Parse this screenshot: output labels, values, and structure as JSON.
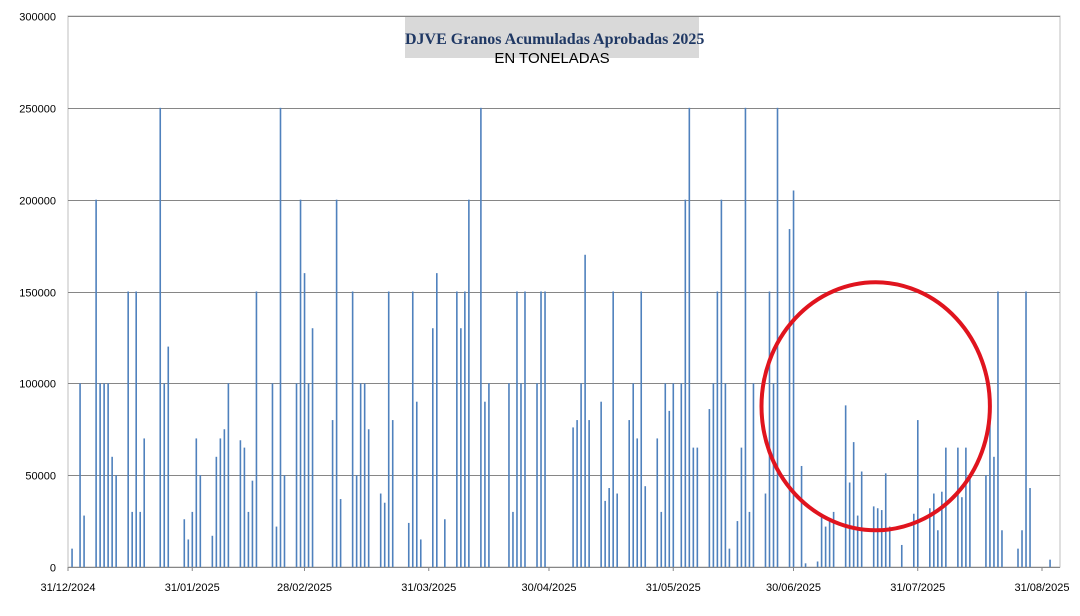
{
  "chart_data": {
    "type": "bar",
    "title": "DJVE Granos Acumuladas Aprobadas 2025",
    "subtitle": "EN TONELADAS",
    "ylim": [
      0,
      300000
    ],
    "y_ticks": [
      "0",
      "50000",
      "100000",
      "150000",
      "200000",
      "250000",
      "300000"
    ],
    "x_range": [
      "2024-12-31",
      "2025-08-31"
    ],
    "x_ticks": [
      "31/12/2024",
      "31/01/2025",
      "28/02/2025",
      "31/03/2025",
      "30/04/2025",
      "31/05/2025",
      "30/06/2025",
      "31/07/2025",
      "31/08/2025"
    ],
    "x_tick_dates": [
      "2024-12-31",
      "2025-01-31",
      "2025-02-28",
      "2025-03-31",
      "2025-04-30",
      "2025-05-31",
      "2025-06-30",
      "2025-07-31",
      "2025-08-31"
    ],
    "grid": true,
    "bar_color": "#4f81bd",
    "annotation": {
      "shape": "ellipse",
      "color": "#e0141e",
      "x_from": "2025-06-22",
      "x_to": "2025-08-18",
      "y_from": 20000,
      "y_to": 155000
    },
    "points": [
      [
        "2025-01-01",
        10000
      ],
      [
        "2025-01-03",
        100000
      ],
      [
        "2025-01-04",
        28000
      ],
      [
        "2025-01-07",
        200000
      ],
      [
        "2025-01-08",
        100000
      ],
      [
        "2025-01-09",
        100000
      ],
      [
        "2025-01-10",
        100000
      ],
      [
        "2025-01-11",
        60000
      ],
      [
        "2025-01-12",
        50000
      ],
      [
        "2025-01-15",
        150000
      ],
      [
        "2025-01-16",
        30000
      ],
      [
        "2025-01-17",
        150000
      ],
      [
        "2025-01-18",
        30000
      ],
      [
        "2025-01-19",
        70000
      ],
      [
        "2025-01-23",
        250000
      ],
      [
        "2025-01-24",
        100000
      ],
      [
        "2025-01-25",
        120000
      ],
      [
        "2025-01-29",
        26000
      ],
      [
        "2025-01-30",
        15000
      ],
      [
        "2025-01-31",
        30000
      ],
      [
        "2025-02-01",
        70000
      ],
      [
        "2025-02-02",
        50000
      ],
      [
        "2025-02-05",
        17000
      ],
      [
        "2025-02-06",
        60000
      ],
      [
        "2025-02-07",
        70000
      ],
      [
        "2025-02-08",
        75000
      ],
      [
        "2025-02-09",
        100000
      ],
      [
        "2025-02-12",
        69000
      ],
      [
        "2025-02-13",
        65000
      ],
      [
        "2025-02-14",
        30000
      ],
      [
        "2025-02-15",
        47000
      ],
      [
        "2025-02-16",
        150000
      ],
      [
        "2025-02-20",
        100000
      ],
      [
        "2025-02-21",
        22000
      ],
      [
        "2025-02-22",
        250000
      ],
      [
        "2025-02-23",
        50000
      ],
      [
        "2025-02-26",
        100000
      ],
      [
        "2025-02-27",
        200000
      ],
      [
        "2025-02-28",
        160000
      ],
      [
        "2025-03-01",
        100000
      ],
      [
        "2025-03-02",
        130000
      ],
      [
        "2025-03-07",
        80000
      ],
      [
        "2025-03-08",
        200000
      ],
      [
        "2025-03-09",
        37000
      ],
      [
        "2025-03-12",
        150000
      ],
      [
        "2025-03-13",
        50000
      ],
      [
        "2025-03-14",
        100000
      ],
      [
        "2025-03-15",
        100000
      ],
      [
        "2025-03-16",
        75000
      ],
      [
        "2025-03-19",
        40000
      ],
      [
        "2025-03-20",
        35000
      ],
      [
        "2025-03-21",
        150000
      ],
      [
        "2025-03-22",
        80000
      ],
      [
        "2025-03-26",
        24000
      ],
      [
        "2025-03-27",
        150000
      ],
      [
        "2025-03-28",
        90000
      ],
      [
        "2025-03-29",
        15000
      ],
      [
        "2025-04-01",
        130000
      ],
      [
        "2025-04-02",
        160000
      ],
      [
        "2025-04-04",
        26000
      ],
      [
        "2025-04-07",
        150000
      ],
      [
        "2025-04-08",
        130000
      ],
      [
        "2025-04-09",
        150000
      ],
      [
        "2025-04-10",
        200000
      ],
      [
        "2025-04-13",
        250000
      ],
      [
        "2025-04-14",
        90000
      ],
      [
        "2025-04-15",
        100000
      ],
      [
        "2025-04-20",
        100000
      ],
      [
        "2025-04-21",
        30000
      ],
      [
        "2025-04-22",
        150000
      ],
      [
        "2025-04-23",
        100000
      ],
      [
        "2025-04-24",
        150000
      ],
      [
        "2025-04-27",
        100000
      ],
      [
        "2025-04-28",
        150000
      ],
      [
        "2025-04-29",
        150000
      ],
      [
        "2025-05-06",
        76000
      ],
      [
        "2025-05-07",
        80000
      ],
      [
        "2025-05-08",
        100000
      ],
      [
        "2025-05-09",
        170000
      ],
      [
        "2025-05-10",
        80000
      ],
      [
        "2025-05-13",
        90000
      ],
      [
        "2025-05-14",
        36000
      ],
      [
        "2025-05-15",
        43000
      ],
      [
        "2025-05-16",
        150000
      ],
      [
        "2025-05-17",
        40000
      ],
      [
        "2025-05-20",
        80000
      ],
      [
        "2025-05-21",
        100000
      ],
      [
        "2025-05-22",
        70000
      ],
      [
        "2025-05-23",
        150000
      ],
      [
        "2025-05-24",
        44000
      ],
      [
        "2025-05-27",
        70000
      ],
      [
        "2025-05-28",
        30000
      ],
      [
        "2025-05-29",
        100000
      ],
      [
        "2025-05-30",
        85000
      ],
      [
        "2025-05-31",
        100000
      ],
      [
        "2025-06-02",
        100000
      ],
      [
        "2025-06-03",
        200000
      ],
      [
        "2025-06-04",
        250000
      ],
      [
        "2025-06-05",
        65000
      ],
      [
        "2025-06-06",
        65000
      ],
      [
        "2025-06-09",
        86000
      ],
      [
        "2025-06-10",
        100000
      ],
      [
        "2025-06-11",
        150000
      ],
      [
        "2025-06-12",
        200000
      ],
      [
        "2025-06-13",
        100000
      ],
      [
        "2025-06-14",
        10000
      ],
      [
        "2025-06-16",
        25000
      ],
      [
        "2025-06-17",
        65000
      ],
      [
        "2025-06-18",
        250000
      ],
      [
        "2025-06-19",
        30000
      ],
      [
        "2025-06-20",
        100000
      ],
      [
        "2025-06-23",
        40000
      ],
      [
        "2025-06-24",
        150000
      ],
      [
        "2025-06-25",
        100000
      ],
      [
        "2025-06-26",
        250000
      ],
      [
        "2025-06-29",
        184000
      ],
      [
        "2025-06-30",
        205000
      ],
      [
        "2025-07-02",
        55000
      ],
      [
        "2025-07-03",
        2000
      ],
      [
        "2025-07-06",
        3000
      ],
      [
        "2025-07-07",
        28000
      ],
      [
        "2025-07-08",
        22000
      ],
      [
        "2025-07-09",
        26000
      ],
      [
        "2025-07-10",
        30000
      ],
      [
        "2025-07-13",
        88000
      ],
      [
        "2025-07-14",
        46000
      ],
      [
        "2025-07-15",
        68000
      ],
      [
        "2025-07-16",
        28000
      ],
      [
        "2025-07-17",
        52000
      ],
      [
        "2025-07-20",
        33000
      ],
      [
        "2025-07-21",
        32000
      ],
      [
        "2025-07-22",
        31000
      ],
      [
        "2025-07-23",
        51000
      ],
      [
        "2025-07-24",
        22000
      ],
      [
        "2025-07-27",
        12000
      ],
      [
        "2025-07-30",
        29000
      ],
      [
        "2025-07-31",
        80000
      ],
      [
        "2025-08-03",
        32000
      ],
      [
        "2025-08-04",
        40000
      ],
      [
        "2025-08-05",
        20000
      ],
      [
        "2025-08-06",
        41000
      ],
      [
        "2025-08-07",
        65000
      ],
      [
        "2025-08-10",
        65000
      ],
      [
        "2025-08-11",
        38000
      ],
      [
        "2025-08-12",
        65000
      ],
      [
        "2025-08-13",
        50000
      ],
      [
        "2025-08-17",
        50000
      ],
      [
        "2025-08-18",
        90000
      ],
      [
        "2025-08-19",
        60000
      ],
      [
        "2025-08-20",
        150000
      ],
      [
        "2025-08-21",
        20000
      ],
      [
        "2025-08-25",
        10000
      ],
      [
        "2025-08-26",
        20000
      ],
      [
        "2025-08-27",
        150000
      ],
      [
        "2025-08-28",
        43000
      ],
      [
        "2025-09-02",
        4000
      ]
    ]
  }
}
